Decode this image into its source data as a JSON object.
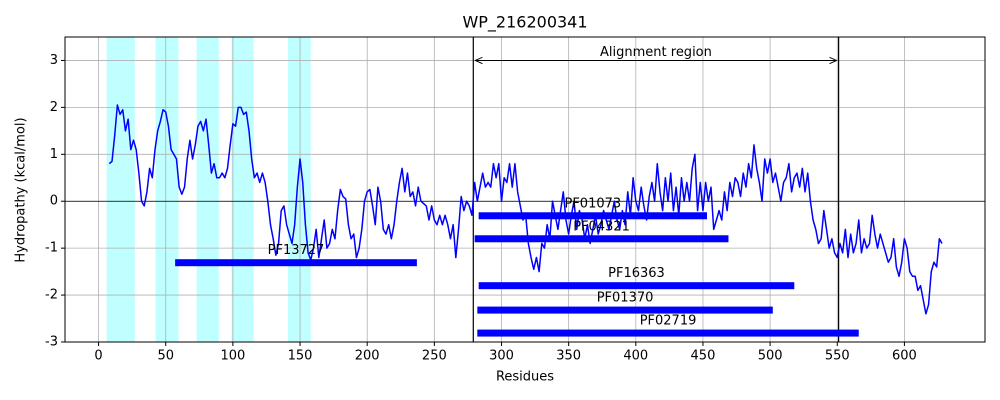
{
  "chart_data": {
    "type": "line",
    "title": "WP_216200341",
    "x_label": "Residues",
    "y_label": "Hydropathy (kcal/mol)",
    "xlim": [
      -25,
      660
    ],
    "ylim": [
      -3,
      3.5
    ],
    "xticks": [
      0,
      50,
      100,
      150,
      200,
      250,
      300,
      350,
      400,
      450,
      500,
      550,
      600
    ],
    "yticks": [
      -3,
      -2,
      -1,
      0,
      1,
      2,
      3
    ],
    "grid": true,
    "color": "#0000ff",
    "highlight_color": "#00ffff",
    "hline": 0,
    "x": [
      8,
      10,
      12,
      14,
      16,
      18,
      20,
      22,
      24,
      26,
      28,
      30,
      32,
      34,
      36,
      38,
      40,
      42,
      44,
      46,
      48,
      50,
      52,
      54,
      56,
      58,
      60,
      62,
      64,
      66,
      68,
      70,
      72,
      74,
      76,
      78,
      80,
      82,
      84,
      86,
      88,
      90,
      92,
      94,
      96,
      98,
      100,
      102,
      104,
      106,
      108,
      110,
      112,
      114,
      116,
      118,
      120,
      122,
      124,
      126,
      128,
      130,
      132,
      134,
      136,
      138,
      140,
      142,
      144,
      146,
      148,
      150,
      152,
      154,
      156,
      158,
      160,
      162,
      164,
      166,
      168,
      170,
      172,
      174,
      176,
      178,
      180,
      182,
      184,
      186,
      188,
      190,
      192,
      194,
      196,
      198,
      200,
      202,
      204,
      206,
      208,
      210,
      212,
      214,
      216,
      218,
      220,
      222,
      224,
      226,
      228,
      230,
      232,
      234,
      236,
      238,
      240,
      242,
      244,
      246,
      248,
      250,
      252,
      254,
      256,
      258,
      260,
      262,
      264,
      266,
      268,
      270,
      272,
      274,
      276,
      278,
      280,
      282,
      284,
      286,
      288,
      290,
      292,
      294,
      296,
      298,
      300,
      302,
      304,
      306,
      308,
      310,
      312,
      314,
      316,
      318,
      320,
      322,
      324,
      326,
      328,
      330,
      332,
      334,
      336,
      338,
      340,
      342,
      344,
      346,
      348,
      350,
      352,
      354,
      356,
      358,
      360,
      362,
      364,
      366,
      368,
      370,
      372,
      374,
      376,
      378,
      380,
      382,
      384,
      386,
      388,
      390,
      392,
      394,
      396,
      398,
      400,
      402,
      404,
      406,
      408,
      410,
      412,
      414,
      416,
      418,
      420,
      422,
      424,
      426,
      428,
      430,
      432,
      434,
      436,
      438,
      440,
      442,
      444,
      446,
      448,
      450,
      452,
      454,
      456,
      458,
      460,
      462,
      464,
      466,
      468,
      470,
      472,
      474,
      476,
      478,
      480,
      482,
      484,
      486,
      488,
      490,
      492,
      494,
      496,
      498,
      500,
      502,
      504,
      506,
      508,
      510,
      512,
      514,
      516,
      518,
      520,
      522,
      524,
      526,
      528,
      530,
      532,
      534,
      536,
      538,
      540,
      542,
      544,
      546,
      548,
      550,
      552,
      554,
      556,
      558,
      560,
      562,
      564,
      566,
      568,
      570,
      572,
      574,
      576,
      578,
      580,
      582,
      584,
      586,
      588,
      590,
      592,
      594,
      596,
      598,
      600,
      602,
      604,
      606,
      608,
      610,
      612,
      614,
      616,
      618,
      620,
      622,
      624,
      626,
      628
    ],
    "values": [
      0.8,
      0.85,
      1.4,
      2.05,
      1.85,
      1.95,
      1.5,
      1.75,
      1.1,
      1.3,
      1.1,
      0.6,
      0.0,
      -0.1,
      0.2,
      0.7,
      0.5,
      1.1,
      1.5,
      1.7,
      1.95,
      1.9,
      1.6,
      1.1,
      1.0,
      0.9,
      0.3,
      0.15,
      0.3,
      0.9,
      1.3,
      0.9,
      1.2,
      1.6,
      1.7,
      1.5,
      1.75,
      1.2,
      0.6,
      0.8,
      0.5,
      0.5,
      0.6,
      0.5,
      0.7,
      1.2,
      1.65,
      1.6,
      2.0,
      2.0,
      1.85,
      1.9,
      1.5,
      0.9,
      0.5,
      0.6,
      0.4,
      0.6,
      0.4,
      0.0,
      -0.5,
      -0.8,
      -1.15,
      -0.9,
      -0.2,
      -0.1,
      -0.5,
      -0.7,
      -0.9,
      -0.5,
      0.3,
      0.9,
      0.4,
      -0.5,
      -1.1,
      -1.25,
      -1.0,
      -0.6,
      -1.2,
      -0.8,
      -0.4,
      -1.0,
      -0.9,
      -0.6,
      -0.8,
      -0.2,
      0.25,
      0.1,
      0.05,
      -0.5,
      -0.8,
      -0.7,
      -1.2,
      -1.0,
      -0.6,
      0.0,
      0.2,
      0.25,
      -0.1,
      -0.5,
      0.3,
      0.0,
      -0.6,
      -0.7,
      -0.5,
      -0.8,
      -0.5,
      0.0,
      0.4,
      0.7,
      0.2,
      0.6,
      0.1,
      0.2,
      -0.1,
      0.3,
      0.0,
      -0.05,
      -0.1,
      -0.4,
      -0.1,
      -0.4,
      -0.5,
      -0.3,
      -0.5,
      -0.3,
      -0.5,
      -0.8,
      -0.5,
      -1.2,
      -0.6,
      0.1,
      -0.2,
      0.0,
      -0.1,
      -0.3,
      0.4,
      0.0,
      0.3,
      0.6,
      0.3,
      0.4,
      0.3,
      0.8,
      0.5,
      0.8,
      0.0,
      0.5,
      0.4,
      0.8,
      0.3,
      0.8,
      0.2,
      -0.1,
      -0.4,
      -0.3,
      -0.9,
      -1.2,
      -1.45,
      -1.2,
      -1.5,
      -0.9,
      -1.0,
      -0.5,
      -0.8,
      0.0,
      -0.3,
      -0.6,
      -0.2,
      0.2,
      -0.4,
      -0.7,
      -0.3,
      0.0,
      -0.6,
      -0.2,
      -0.4,
      -0.8,
      -0.5,
      -0.9,
      -0.6,
      -0.3,
      -0.7,
      -0.5,
      -0.2,
      -0.4,
      -0.6,
      -0.3,
      0.0,
      -0.4,
      -0.6,
      -0.2,
      -0.5,
      0.2,
      -0.3,
      0.5,
      0.0,
      -0.2,
      0.3,
      -0.1,
      -0.4,
      0.1,
      0.4,
      0.0,
      0.8,
      0.2,
      -0.2,
      0.5,
      0.0,
      0.6,
      -0.2,
      0.3,
      -0.3,
      0.5,
      0.0,
      0.4,
      0.0,
      0.7,
      1.0,
      -0.2,
      0.4,
      -0.2,
      0.4,
      0.0,
      0.3,
      -0.6,
      -0.4,
      -0.2,
      -0.4,
      0.2,
      -0.2,
      0.4,
      0.1,
      0.5,
      0.4,
      0.1,
      0.6,
      0.3,
      0.8,
      0.5,
      1.2,
      0.7,
      0.4,
      0.0,
      0.9,
      0.6,
      0.9,
      0.4,
      0.6,
      0.3,
      0.0,
      0.4,
      0.5,
      0.8,
      0.2,
      0.5,
      0.6,
      0.3,
      0.7,
      0.2,
      0.6,
      0.0,
      -0.4,
      -0.6,
      -0.9,
      -0.8,
      -0.2,
      -0.6,
      -1.0,
      -0.8,
      -1.1,
      -1.2,
      -0.9,
      -1.1,
      -0.6,
      -1.2,
      -0.7,
      -1.1,
      -0.9,
      -0.4,
      -1.1,
      -0.8,
      -1.0,
      -0.9,
      -0.3,
      -0.7,
      -1.0,
      -0.7,
      -0.9,
      -1.1,
      -1.3,
      -1.2,
      -0.8,
      -1.4,
      -1.6,
      -1.3,
      -0.8,
      -1.0,
      -1.5,
      -1.6,
      -1.6,
      -1.9,
      -1.8,
      -2.1,
      -2.4,
      -2.2,
      -1.5,
      -1.3,
      -1.4,
      -0.8,
      -0.9
    ],
    "highlight_regions": [
      [
        6,
        27
      ],
      [
        42.5,
        59.5
      ],
      [
        73,
        89.5
      ],
      [
        99,
        115.5
      ],
      [
        141,
        158
      ]
    ],
    "vlines": [
      279,
      551
    ],
    "annotation": {
      "text": "Alignment region",
      "start": 279,
      "end": 551,
      "y": 3
    },
    "domains": [
      {
        "name": "PF01073",
        "start": 283,
        "end": 453,
        "y": -0.31
      },
      {
        "name": "PF04321",
        "start": 280,
        "end": 469,
        "y": -0.8
      },
      {
        "name": "PF13727",
        "start": 57,
        "end": 237,
        "y": -1.31
      },
      {
        "name": "PF16363",
        "start": 283,
        "end": 518,
        "y": -1.8
      },
      {
        "name": "PF01370",
        "start": 282,
        "end": 502,
        "y": -2.32
      },
      {
        "name": "PF02719",
        "start": 282,
        "end": 566,
        "y": -2.81
      }
    ]
  }
}
